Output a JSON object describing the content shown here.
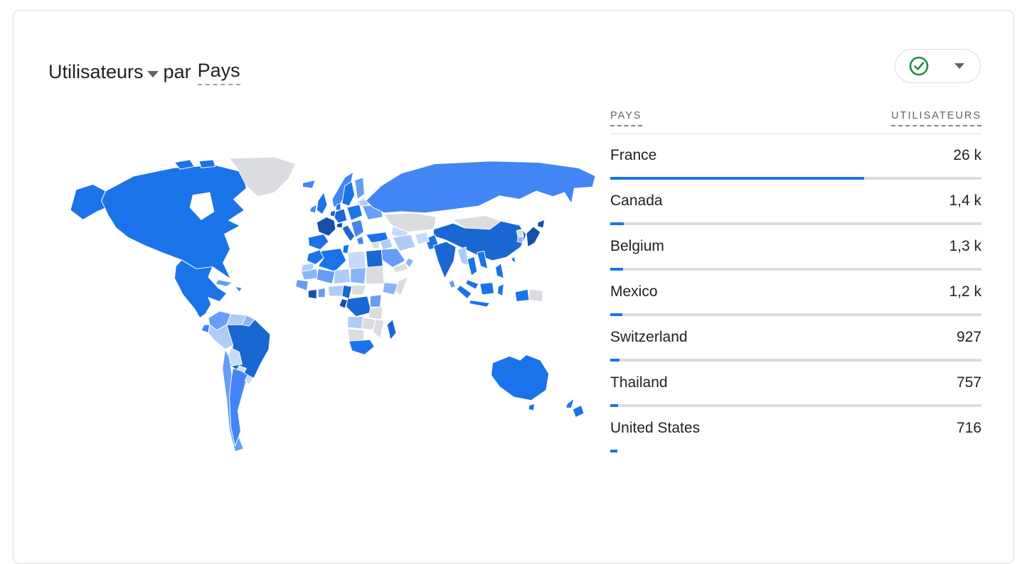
{
  "card": {
    "title": {
      "metric_label": "Utilisateurs",
      "connector": "par",
      "dimension_label": "Pays"
    },
    "status_button": {
      "icon": "check-circle",
      "check_color": "#1e8e3e",
      "caret_color": "#5f6368"
    }
  },
  "table": {
    "header": {
      "country": "PAYS",
      "users": "UTILISATEURS"
    },
    "bar_color": "#1a73e8",
    "track_color": "#dadce0",
    "rows": [
      {
        "country": "France",
        "users": "26 k",
        "bar_pct": 68.3
      },
      {
        "country": "Canada",
        "users": "1,4 k",
        "bar_pct": 3.7
      },
      {
        "country": "Belgium",
        "users": "1,3 k",
        "bar_pct": 3.4
      },
      {
        "country": "Mexico",
        "users": "1,2 k",
        "bar_pct": 3.2
      },
      {
        "country": "Switzerland",
        "users": "927",
        "bar_pct": 2.5
      },
      {
        "country": "Thailand",
        "users": "757",
        "bar_pct": 2.1
      },
      {
        "country": "United States",
        "users": "716",
        "bar_pct": 1.9
      }
    ]
  },
  "chart_data": {
    "type": "table",
    "title": "Utilisateurs par Pays",
    "columns": [
      "Pays",
      "Utilisateurs"
    ],
    "rows": [
      [
        "France",
        "26 k"
      ],
      [
        "Canada",
        "1,4 k"
      ],
      [
        "Belgium",
        "1,3 k"
      ],
      [
        "Mexico",
        "1,2 k"
      ],
      [
        "Switzerland",
        "927"
      ],
      [
        "Thailand",
        "757"
      ],
      [
        "United States",
        "716"
      ]
    ],
    "numeric_values": [
      26000,
      1400,
      1300,
      1200,
      927,
      757,
      716
    ],
    "bar_fractions": [
      0.683,
      0.037,
      0.034,
      0.032,
      0.025,
      0.021,
      0.019
    ],
    "legend_position": "none",
    "grid": false
  },
  "map": {
    "type": "choropleth-world",
    "palette": {
      "navy": "#174ea6",
      "strong": "#1967d2",
      "medium": "#1a73e8",
      "mid": "#4285f4",
      "soft": "#669df6",
      "light": "#8ab4f8",
      "pale": "#aecbfa",
      "faint": "#c6dafc",
      "gray": "#dadce0",
      "ocean": "#ffffff"
    },
    "regions": {
      "france": "navy",
      "japan": "navy",
      "ivory-coast": "navy",
      "gabon": "navy",
      "switzerland-alps": "navy",
      "china": "strong",
      "india": "strong",
      "brazil": "strong",
      "egypt": "strong",
      "drc": "strong",
      "cameroon": "strong",
      "madagascar": "strong",
      "germany": "strong",
      "italy": "strong",
      "united-states": "medium",
      "canada": "medium",
      "alaska": "medium",
      "mexico": "medium",
      "australia": "medium",
      "indonesia": "medium",
      "uk": "medium",
      "iberia": "medium",
      "morocco": "medium",
      "algeria": "medium",
      "turkey": "medium",
      "south-africa": "medium",
      "thailand": "medium",
      "vietnam": "medium",
      "philippines": "medium",
      "pakistan": "medium",
      "russia": "mid",
      "argentina": "mid",
      "iceland": "mid",
      "ireland": "mid",
      "norway": "mid",
      "balkans": "mid",
      "colombia": "soft",
      "chile": "soft",
      "saudi-arabia": "soft",
      "mali": "soft",
      "kenya": "soft",
      "cuba": "soft",
      "ukraine": "soft",
      "finland": "soft",
      "ghana": "soft",
      "senegal": "soft",
      "sri-lanka": "soft",
      "mauritania": "light",
      "chad": "light",
      "ethiopia": "light",
      "oman": "light",
      "south-korea": "light",
      "guyanas": "light",
      "peru": "pale",
      "venezuela": "pale",
      "iran": "pale",
      "iraq": "pale",
      "niger": "pale",
      "nigeria": "pale",
      "angola": "pale",
      "myanmar": "pale",
      "belarus": "pale",
      "baltics": "pale",
      "western-sahara": "pale",
      "bolivia": "faint",
      "uruguay": "faint",
      "libya": "faint",
      "afghanistan": "faint",
      "uzbekistan": "faint",
      "greenland": "gray",
      "kazakhstan": "gray",
      "mongolia": "gray",
      "paraguay": "gray",
      "sudan": "gray",
      "somalia": "gray",
      "papua-new-guinea": "gray",
      "tanzania": "gray",
      "zambia": "gray",
      "mozambique": "gray",
      "namibia-botswana": "gray",
      "central-african-republic": "gray",
      "yemen": "gray",
      "levant": "gray",
      "north-korea": "gray"
    }
  }
}
